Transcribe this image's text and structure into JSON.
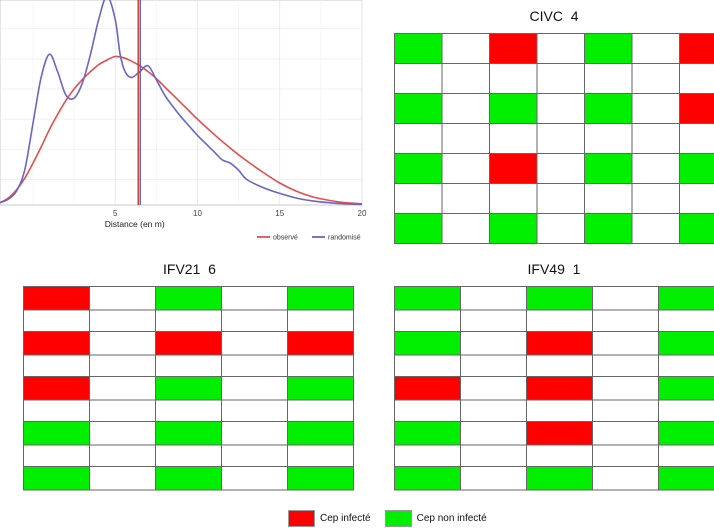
{
  "chart_data": [
    {
      "type": "line",
      "xlabel": "Distance (en m)",
      "ylabel": "",
      "xlim": [
        -2,
        20
      ],
      "x_ticks": [
        5,
        10,
        15,
        20
      ],
      "grid": true,
      "legend_position": "bottom-right",
      "observed_line_x": 6.4,
      "series": [
        {
          "name": "observé",
          "color": "#e74c4c",
          "x": [
            -2,
            -1.5,
            -1,
            -0.5,
            0,
            0.5,
            1,
            1.5,
            2,
            2.5,
            3,
            3.5,
            4,
            4.5,
            5,
            5.5,
            6,
            6.5,
            7,
            7.5,
            8,
            8.5,
            9,
            9.5,
            10,
            11,
            12,
            13,
            14,
            15,
            16,
            17,
            18,
            19,
            20
          ],
          "y": [
            0.2,
            0.6,
            1.3,
            2.3,
            3.6,
            5.0,
            6.5,
            7.8,
            9.0,
            10.0,
            10.8,
            11.5,
            12.1,
            12.5,
            12.8,
            12.7,
            12.4,
            12.0,
            11.5,
            10.9,
            10.2,
            9.5,
            8.8,
            8.1,
            7.4,
            6.1,
            4.9,
            3.8,
            2.8,
            1.9,
            1.2,
            0.7,
            0.4,
            0.2,
            0.1
          ]
        },
        {
          "name": "randomisé",
          "color": "#6666cc",
          "x": [
            -2,
            -1.5,
            -1,
            -0.5,
            0,
            0.5,
            1,
            1.5,
            2,
            2.5,
            3,
            3.5,
            4,
            4.5,
            5,
            5.3,
            5.6,
            6,
            6.5,
            7,
            7.5,
            8,
            8.5,
            9,
            9.5,
            10,
            10.5,
            11,
            11.5,
            12,
            12.5,
            13,
            14,
            15,
            16,
            17,
            18,
            19,
            20
          ],
          "y": [
            0.2,
            0.5,
            1.2,
            3.0,
            7.0,
            11.0,
            13.0,
            11.5,
            9.5,
            9.2,
            10.5,
            13.0,
            16.0,
            18.0,
            16.0,
            13.0,
            11.5,
            11.0,
            11.5,
            12.0,
            10.8,
            9.5,
            8.5,
            7.6,
            6.8,
            6.0,
            5.3,
            4.6,
            3.9,
            3.6,
            3.0,
            2.2,
            1.5,
            1.0,
            0.6,
            0.35,
            0.2,
            0.1,
            0.05
          ]
        }
      ]
    },
    {
      "type": "table",
      "title": "CIVC  4",
      "rows": 7,
      "cols": 7,
      "cells": [
        [
          "G",
          "W",
          "R",
          "W",
          "G",
          "W",
          "R"
        ],
        [
          "W",
          "W",
          "W",
          "W",
          "W",
          "W",
          "W"
        ],
        [
          "G",
          "W",
          "G",
          "W",
          "G",
          "W",
          "R"
        ],
        [
          "W",
          "W",
          "W",
          "W",
          "W",
          "W",
          "W"
        ],
        [
          "G",
          "W",
          "R",
          "W",
          "G",
          "W",
          "G"
        ],
        [
          "W",
          "W",
          "W",
          "W",
          "W",
          "W",
          "W"
        ],
        [
          "G",
          "W",
          "G",
          "W",
          "G",
          "W",
          "G"
        ]
      ]
    },
    {
      "type": "table",
      "title": "IFV21  6",
      "rows": 9,
      "cols": 5,
      "cells": [
        [
          "R",
          "W",
          "G",
          "W",
          "G"
        ],
        [
          "W",
          "W",
          "W",
          "W",
          "W"
        ],
        [
          "R",
          "W",
          "R",
          "W",
          "R"
        ],
        [
          "W",
          "W",
          "W",
          "W",
          "W"
        ],
        [
          "R",
          "W",
          "G",
          "W",
          "G"
        ],
        [
          "W",
          "W",
          "W",
          "W",
          "W"
        ],
        [
          "G",
          "W",
          "G",
          "W",
          "G"
        ],
        [
          "W",
          "W",
          "W",
          "W",
          "W"
        ],
        [
          "G",
          "W",
          "G",
          "W",
          "G"
        ]
      ]
    },
    {
      "type": "table",
      "title": "IFV49  1",
      "rows": 9,
      "cols": 5,
      "cells": [
        [
          "G",
          "W",
          "G",
          "W",
          "G"
        ],
        [
          "W",
          "W",
          "W",
          "W",
          "W"
        ],
        [
          "G",
          "W",
          "R",
          "W",
          "G"
        ],
        [
          "W",
          "W",
          "W",
          "W",
          "W"
        ],
        [
          "R",
          "W",
          "R",
          "W",
          "G"
        ],
        [
          "W",
          "W",
          "W",
          "W",
          "W"
        ],
        [
          "G",
          "W",
          "R",
          "W",
          "G"
        ],
        [
          "W",
          "W",
          "W",
          "W",
          "W"
        ],
        [
          "G",
          "W",
          "G",
          "W",
          "G"
        ]
      ]
    }
  ],
  "colors": {
    "infected": "#ff0000",
    "healthy": "#00ee00",
    "empty": "#ffffff",
    "gridline": "#666666",
    "observed_vline": "#c0392b",
    "random_vline": "#5555bb"
  },
  "legend": {
    "infected_label": "Cep infecté",
    "healthy_label": "Cep non infecté"
  }
}
